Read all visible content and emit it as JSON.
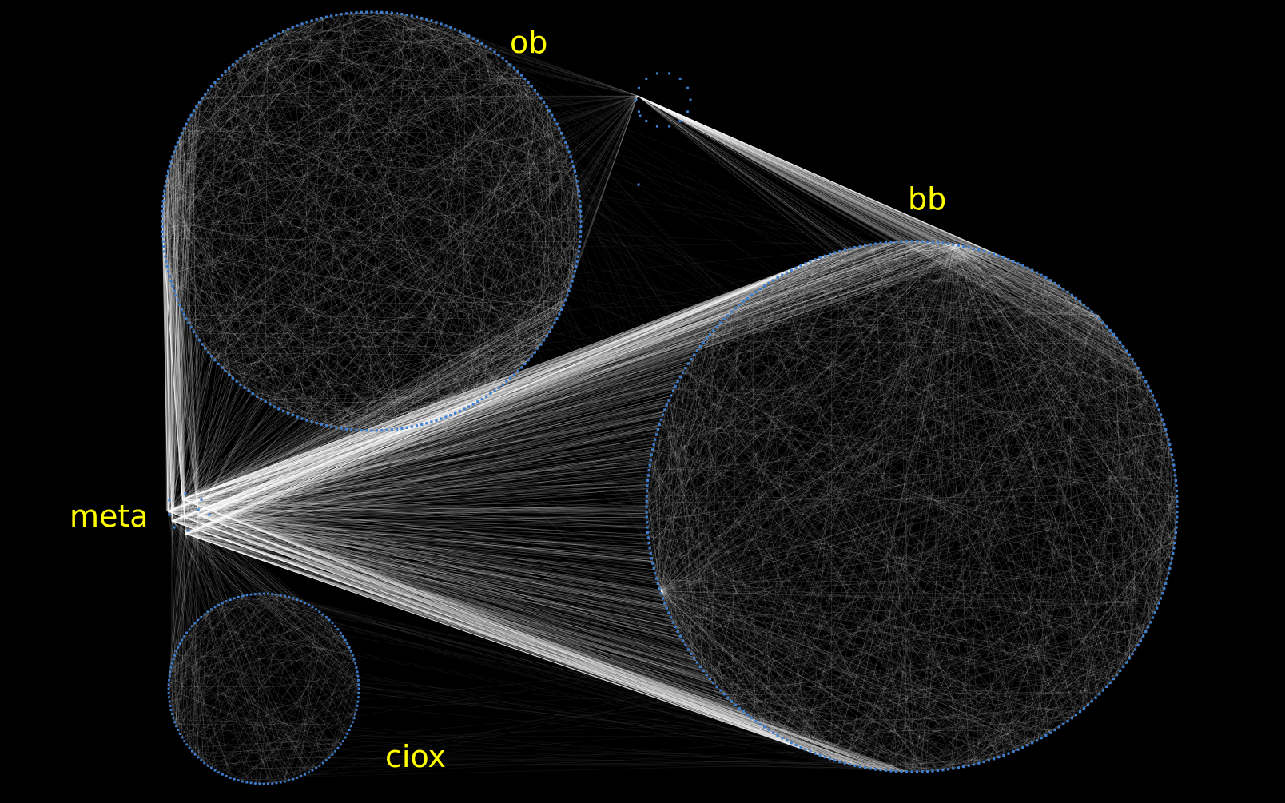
{
  "colors": {
    "background": "#000000",
    "node": "#3f7fd0",
    "edge": "#ffffff",
    "label": "#ffff00"
  },
  "clusters": [
    {
      "id": "ob",
      "label": "ob"
    },
    {
      "id": "bb",
      "label": "bb"
    },
    {
      "id": "meta",
      "label": "meta"
    },
    {
      "id": "ciox",
      "label": "ciox"
    },
    {
      "id": "small",
      "label": ""
    }
  ]
}
